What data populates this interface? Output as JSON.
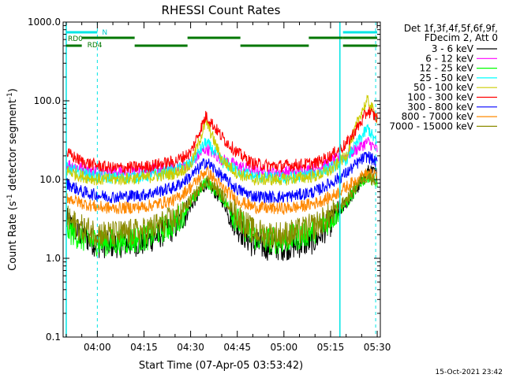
{
  "chart_data": {
    "type": "line",
    "title": "RHESSI Count Rates",
    "xlabel": "Start Time (07-Apr-05 03:53:42)",
    "ylabel": "Count Rate (s",
    "ylabel_sup": "-1",
    "ylabel_rest": " detector segment",
    "ylabel_sup2": "-1",
    "ylabel_end": ")",
    "x_range_minutes": [
      -1,
      101
    ],
    "ylim": [
      0.1,
      1000
    ],
    "y_scale": "log",
    "x_ticks": [
      {
        "t": 10,
        "label": "04:00"
      },
      {
        "t": 25,
        "label": "04:15"
      },
      {
        "t": 40,
        "label": "04:30"
      },
      {
        "t": 55,
        "label": "04:45"
      },
      {
        "t": 70,
        "label": "05:00"
      },
      {
        "t": 85,
        "label": "05:15"
      },
      {
        "t": 100,
        "label": "05:30"
      }
    ],
    "y_ticks": [
      {
        "v": 0.1,
        "label": "0.1"
      },
      {
        "v": 1,
        "label": "1.0"
      },
      {
        "v": 10,
        "label": "10.0"
      },
      {
        "v": 100,
        "label": "100.0"
      },
      {
        "v": 1000,
        "label": "1000.0"
      }
    ],
    "legend_header": [
      "Det 1f,3f,4f,5f,6f,9f,",
      "FDecim 2, Att 0"
    ],
    "series": [
      {
        "name": "3 - 6 keV",
        "color": "#000000",
        "x": [
          0,
          5,
          10,
          15,
          25,
          35,
          40,
          45,
          50,
          55,
          60,
          65,
          70,
          75,
          80,
          85,
          90,
          95,
          97,
          100
        ],
        "y": [
          3.0,
          2.0,
          1.5,
          1.5,
          1.6,
          2.5,
          4.5,
          9.0,
          5.5,
          2.5,
          1.5,
          1.4,
          1.4,
          1.5,
          1.7,
          2.8,
          5.0,
          9.0,
          13,
          12
        ]
      },
      {
        "name": "6 - 12 keV",
        "color": "#ff00ff",
        "x": [
          0,
          5,
          10,
          15,
          25,
          35,
          40,
          45,
          50,
          55,
          60,
          65,
          70,
          75,
          80,
          85,
          90,
          95,
          97,
          100
        ],
        "y": [
          16,
          14,
          13,
          12.5,
          13,
          14,
          16,
          25,
          18,
          15,
          13,
          12.5,
          12.5,
          13,
          13.5,
          17,
          20,
          27,
          30,
          24
        ]
      },
      {
        "name": "12 - 25 keV",
        "color": "#00ff00",
        "x": [
          0,
          5,
          10,
          15,
          25,
          35,
          40,
          45,
          50,
          55,
          60,
          65,
          70,
          75,
          80,
          85,
          90,
          95,
          97,
          100
        ],
        "y": [
          2.4,
          1.8,
          1.6,
          1.6,
          1.8,
          2.8,
          5.0,
          9.5,
          6.0,
          3.0,
          1.9,
          1.7,
          1.7,
          1.9,
          2.3,
          3.2,
          5.0,
          9.5,
          11,
          9
        ]
      },
      {
        "name": "25 - 50 keV",
        "color": "#00ffff",
        "x": [
          0,
          5,
          10,
          15,
          25,
          35,
          40,
          45,
          50,
          55,
          60,
          65,
          70,
          75,
          80,
          85,
          90,
          95,
          97,
          100
        ],
        "y": [
          14,
          12,
          11,
          10.5,
          11,
          13,
          16,
          30,
          17,
          13,
          11,
          10.5,
          10.5,
          11,
          12,
          14,
          18,
          35,
          45,
          28
        ]
      },
      {
        "name": "50 - 100 keV",
        "color": "#cccc00",
        "x": [
          0,
          5,
          10,
          15,
          25,
          35,
          40,
          45,
          50,
          55,
          60,
          65,
          70,
          75,
          80,
          85,
          90,
          95,
          97,
          100
        ],
        "y": [
          13,
          11,
          10,
          10,
          10.5,
          12,
          15,
          55,
          18,
          12,
          10,
          10,
          10,
          10.5,
          11,
          13,
          20,
          75,
          100,
          60
        ]
      },
      {
        "name": "100 - 300 keV",
        "color": "#ff0000",
        "x": [
          0,
          5,
          10,
          15,
          25,
          35,
          40,
          45,
          50,
          55,
          60,
          65,
          70,
          75,
          80,
          85,
          90,
          95,
          97,
          100
        ],
        "y": [
          22,
          17,
          15,
          14,
          14.5,
          17,
          22,
          65,
          35,
          22,
          16,
          15,
          15,
          15.5,
          16,
          20,
          28,
          55,
          75,
          60
        ]
      },
      {
        "name": "300 - 800 keV",
        "color": "#0000ff",
        "x": [
          0,
          5,
          10,
          15,
          25,
          35,
          40,
          45,
          50,
          55,
          60,
          65,
          70,
          75,
          80,
          85,
          90,
          95,
          97,
          100
        ],
        "y": [
          9,
          7,
          6.3,
          6,
          6.4,
          8,
          11,
          17,
          11,
          7.5,
          6.2,
          6,
          6,
          6.4,
          7,
          9,
          12,
          18,
          20,
          16
        ]
      },
      {
        "name": "800 - 7000 keV",
        "color": "#ff8800",
        "x": [
          0,
          5,
          10,
          15,
          25,
          35,
          40,
          45,
          50,
          55,
          60,
          65,
          70,
          75,
          80,
          85,
          90,
          95,
          97,
          100
        ],
        "y": [
          6,
          5,
          4.5,
          4.3,
          4.5,
          5.5,
          8,
          13,
          8,
          5.5,
          4.5,
          4.3,
          4.3,
          4.5,
          5,
          6,
          8,
          11,
          12,
          11
        ]
      },
      {
        "name": "7000 - 15000 keV",
        "color": "#8b8b00",
        "x": [
          0,
          5,
          10,
          15,
          25,
          35,
          40,
          45,
          50,
          55,
          60,
          65,
          70,
          75,
          80,
          85,
          90,
          95,
          97,
          100
        ],
        "y": [
          3.2,
          2.4,
          2.1,
          2.0,
          2.2,
          3.2,
          5.5,
          10,
          6.5,
          3.5,
          2.2,
          2.0,
          2.0,
          2.2,
          2.6,
          3.5,
          5.5,
          10,
          11,
          9.5
        ]
      }
    ],
    "annotations": {
      "N_label": "N",
      "RD0_label": "RD0",
      "RD4_label": "RD4",
      "cyan_bars": [
        [
          0,
          10
        ],
        [
          89,
          100
        ]
      ],
      "green_upper_bars": [
        [
          5,
          22
        ],
        [
          39,
          56
        ],
        [
          78,
          89
        ],
        [
          89,
          100
        ]
      ],
      "green_lower_bars": [
        [
          0,
          5
        ],
        [
          22,
          39
        ],
        [
          56,
          78
        ],
        [
          89,
          100
        ]
      ],
      "vertical_solid_lines": [
        0,
        88
      ],
      "vertical_dashed_lines": [
        10,
        99.5
      ]
    }
  },
  "footer": {
    "timestamp": "15-Oct-2021 23:42"
  }
}
